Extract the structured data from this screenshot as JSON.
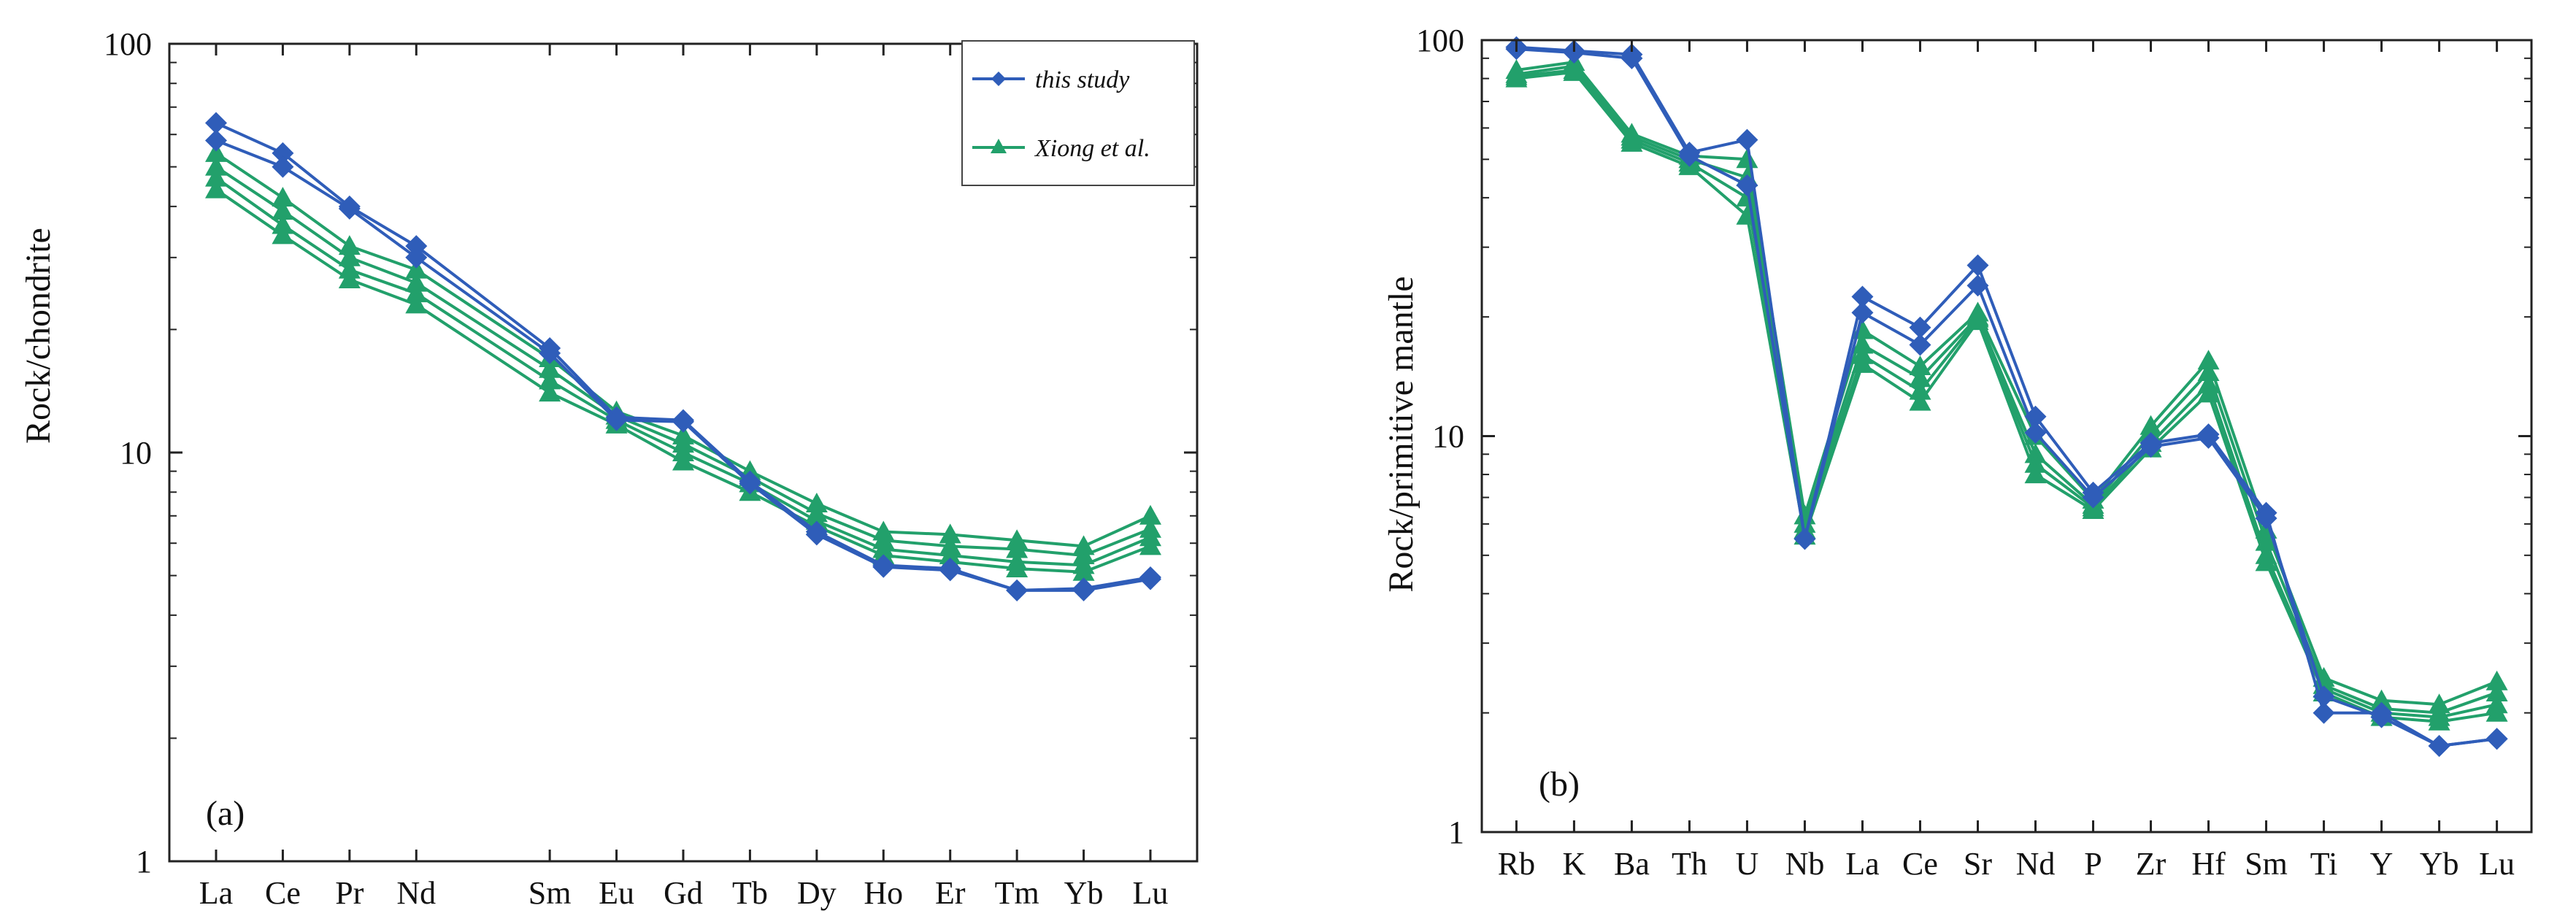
{
  "colors": {
    "blue": "#2F5DB9",
    "green": "#22A06B",
    "axis": "#222222"
  },
  "chart_data": [
    {
      "id": "a",
      "type": "line",
      "panel_label": "(a)",
      "ylabel": "Rock/chondrite",
      "yscale": "log",
      "ylim": [
        1,
        100
      ],
      "ytick_labels": [
        "1",
        "10",
        "100"
      ],
      "yticks": [
        1,
        10,
        100
      ],
      "x_positions": [
        0,
        1,
        2,
        3,
        5,
        6,
        7,
        8,
        9,
        10,
        11,
        12,
        13,
        14
      ],
      "xlim": [
        -0.7,
        14.7
      ],
      "categories": [
        "La",
        "Ce",
        "Pr",
        "Nd",
        "Sm",
        "Eu",
        "Gd",
        "Tb",
        "Dy",
        "Ho",
        "Er",
        "Tm",
        "Yb",
        "Lu"
      ],
      "legend": [
        {
          "label": "this study",
          "color_key": "blue",
          "marker": "diamond"
        },
        {
          "label": "Xiong et al.",
          "color_key": "green",
          "marker": "triangle"
        }
      ],
      "series": [
        {
          "name": "this study",
          "group": "this study",
          "values": [
            64,
            54,
            40,
            32,
            18,
            12.2,
            12,
            8.5,
            6.4,
            5.3,
            5.2,
            4.6,
            4.65,
            4.95
          ]
        },
        {
          "name": "this study",
          "group": "this study",
          "values": [
            58,
            50,
            39.5,
            30,
            17.5,
            12.0,
            11.9,
            8.4,
            6.3,
            5.25,
            5.15,
            4.6,
            4.6,
            4.9
          ]
        },
        {
          "name": "Xiong et al.",
          "group": "Xiong et al.",
          "values": [
            54,
            42,
            32,
            28,
            17,
            12.6,
            11,
            9.0,
            7.5,
            6.4,
            6.3,
            6.1,
            5.9,
            7.0
          ]
        },
        {
          "name": "Xiong et al.",
          "group": "Xiong et al.",
          "values": [
            50,
            39,
            30,
            26,
            16,
            12.3,
            10.5,
            8.7,
            7.1,
            6.1,
            5.9,
            5.8,
            5.6,
            6.5
          ]
        },
        {
          "name": "Xiong et al.",
          "group": "Xiong et al.",
          "values": [
            47,
            36,
            28,
            24.5,
            15,
            12.0,
            10.0,
            8.4,
            6.8,
            5.8,
            5.6,
            5.4,
            5.3,
            6.2
          ]
        },
        {
          "name": "Xiong et al.",
          "group": "Xiong et al.",
          "values": [
            44,
            34,
            26.5,
            23,
            14,
            11.7,
            9.5,
            8.0,
            6.6,
            5.6,
            5.4,
            5.2,
            5.1,
            5.9
          ]
        }
      ]
    },
    {
      "id": "b",
      "type": "line",
      "panel_label": "(b)",
      "ylabel": "Rock/primitive mantle",
      "yscale": "log",
      "ylim": [
        1,
        100
      ],
      "ytick_labels": [
        "1",
        "10",
        "100"
      ],
      "yticks": [
        1,
        10,
        100
      ],
      "x_positions": [
        0,
        1,
        2,
        3,
        4,
        5,
        6,
        7,
        8,
        9,
        10,
        11,
        12,
        13,
        14,
        15,
        16,
        17
      ],
      "xlim": [
        -0.6,
        17.6
      ],
      "categories": [
        "Rb",
        "K",
        "Ba",
        "Th",
        "U",
        "Nb",
        "La",
        "Ce",
        "Sr",
        "Nd",
        "P",
        "Zr",
        "Hf",
        "Sm",
        "Ti",
        "Y",
        "Yb",
        "Lu"
      ],
      "legend": [],
      "series": [
        {
          "name": "this study",
          "group": "this study",
          "values": [
            96,
            94,
            92,
            52,
            56,
            5.5,
            22.5,
            18.8,
            27,
            11.2,
            7.2,
            9.6,
            10.1,
            6.4,
            2.0,
            2.0,
            1.65,
            1.72
          ]
        },
        {
          "name": "this study",
          "group": "this study",
          "values": [
            95,
            93,
            90,
            51,
            43,
            5.5,
            20.5,
            17.0,
            24,
            10.2,
            7.0,
            9.4,
            9.9,
            6.2,
            2.2,
            1.95,
            1.65,
            1.72
          ]
        },
        {
          "name": "Xiong et al.",
          "group": "Xiong et al.",
          "values": [
            84,
            88,
            58,
            51,
            50,
            6.3,
            18.5,
            15.0,
            20.5,
            10.0,
            6.9,
            10.6,
            15.5,
            5.8,
            2.45,
            2.15,
            2.1,
            2.4
          ]
        },
        {
          "name": "Xiong et al.",
          "group": "Xiong et al.",
          "values": [
            82,
            86,
            57,
            50,
            45,
            6.0,
            17.0,
            14.0,
            20.0,
            9.0,
            6.7,
            10.1,
            14.5,
            5.4,
            2.35,
            2.05,
            2.0,
            2.25
          ]
        },
        {
          "name": "Xiong et al.",
          "group": "Xiong et al.",
          "values": [
            81,
            84,
            56,
            49,
            40,
            5.8,
            16.0,
            13.0,
            19.8,
            8.5,
            6.6,
            9.6,
            13.5,
            5.0,
            2.3,
            2.0,
            1.95,
            2.1
          ]
        },
        {
          "name": "Xiong et al.",
          "group": "Xiong et al.",
          "values": [
            80,
            83,
            55,
            48,
            36,
            5.6,
            15.2,
            12.2,
            19.5,
            8.0,
            6.5,
            9.3,
            12.8,
            4.8,
            2.25,
            1.95,
            1.9,
            2.0
          ]
        }
      ]
    }
  ]
}
